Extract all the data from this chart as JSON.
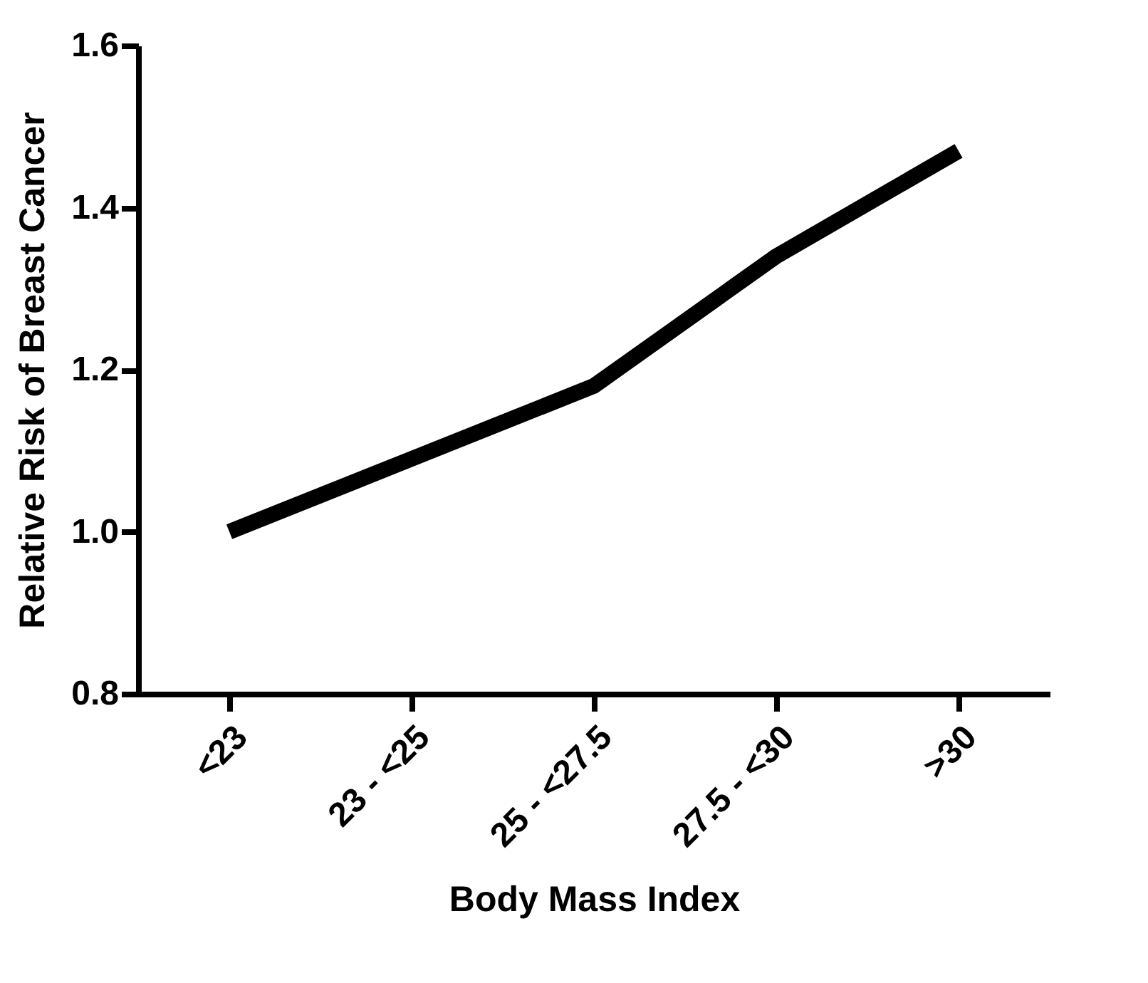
{
  "chart_data": {
    "type": "line",
    "xlabel": "Body Mass Index",
    "ylabel": "Relative Risk of Breast Cancer",
    "categories": [
      "<23",
      "23 - <25",
      "25 - <27.5",
      "27.5 - <30",
      ">30"
    ],
    "series": [
      {
        "color": "#000000",
        "values": [
          1.0,
          1.09,
          1.18,
          1.34,
          1.47
        ]
      }
    ],
    "ylim": [
      0.8,
      1.6
    ],
    "yticks": [
      {
        "value": 0.8,
        "label": "0.8"
      },
      {
        "value": 1,
        "label": "1.0"
      },
      {
        "value": 1.2,
        "label": "1.2"
      },
      {
        "value": 1.4,
        "label": "1.4"
      },
      {
        "value": 1.6,
        "label": "1.6"
      }
    ],
    "line_style": "solid"
  }
}
